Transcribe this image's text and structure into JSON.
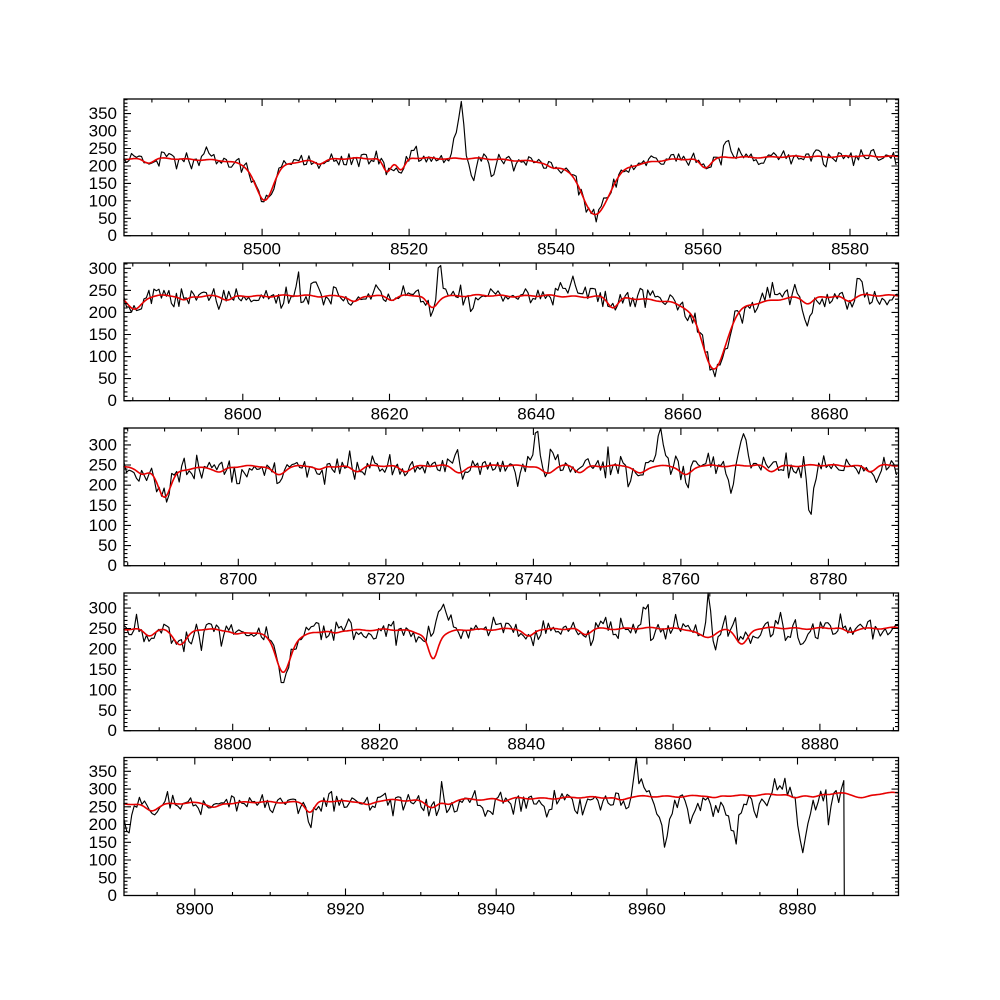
{
  "figure": {
    "background": "#ffffff",
    "description": "Five stacked panels of an observed stellar spectrum (black) in the Ca II triplet region with an overplotted model fit (red); x axis is wavelength in Angstroms, y axis is counts."
  },
  "chart_data": {
    "type": "line",
    "title": "",
    "xlabel": "",
    "ylabel": "",
    "grid": false,
    "legend": "none",
    "series": [
      {
        "name": "observed-spectrum",
        "color": "#000000"
      },
      {
        "name": "model-fit",
        "color": "#e60000"
      }
    ],
    "panels": [
      {
        "xlim": [
          8481.2,
          8586.6
        ],
        "ylim": [
          0,
          392
        ],
        "xticks": [
          8500,
          8520,
          8540,
          8560,
          8580
        ],
        "yticks": [
          0,
          50,
          100,
          150,
          200,
          250,
          300,
          350
        ],
        "x_minor_step": 5,
        "y_minor_step": 10,
        "continuum": [
          223,
          229
        ],
        "red_wiggle": 1.6,
        "noise_sigma": [
          12,
          12
        ],
        "model_lines": [
          {
            "x": 8484.5,
            "d": 12,
            "w": 0.7
          },
          {
            "x": 8500.3,
            "d": 122,
            "w": 1.1
          },
          {
            "x": 8507.8,
            "d": 10,
            "w": 0.6
          },
          {
            "x": 8517.0,
            "d": 38,
            "w": 0.55
          },
          {
            "x": 8518.9,
            "d": 34,
            "w": 0.55
          },
          {
            "x": 8539.5,
            "d": 12,
            "w": 0.7
          },
          {
            "x": 8545.4,
            "d": 167,
            "w": 1.7
          },
          {
            "x": 8560.3,
            "d": 26,
            "w": 0.7
          }
        ],
        "black_extras": [
          {
            "x": 8492.5,
            "a": 42,
            "w": 0.3
          },
          {
            "x": 8520.6,
            "a": 48,
            "w": 0.3
          },
          {
            "x": 8526.2,
            "a": 70,
            "w": 0.28
          },
          {
            "x": 8527.1,
            "a": 158,
            "w": 0.3
          },
          {
            "x": 8528.8,
            "a": -68,
            "w": 0.3
          },
          {
            "x": 8531.2,
            "a": -42,
            "w": 0.3
          },
          {
            "x": 8563.3,
            "a": 52,
            "w": 0.35
          },
          {
            "x": 8575.5,
            "a": 35,
            "w": 0.3
          }
        ]
      },
      {
        "xlim": [
          8583.8,
          8689.4
        ],
        "ylim": [
          0,
          312
        ],
        "xticks": [
          8600,
          8620,
          8640,
          8660,
          8680
        ],
        "yticks": [
          0,
          50,
          100,
          150,
          200,
          250,
          300
        ],
        "x_minor_step": 5,
        "y_minor_step": 10,
        "continuum": [
          237,
          241
        ],
        "red_wiggle": 1.6,
        "noise_sigma": [
          13,
          13
        ],
        "model_lines": [
          {
            "x": 8585.3,
            "d": 30,
            "w": 0.9
          },
          {
            "x": 8592.0,
            "d": 10,
            "w": 0.6
          },
          {
            "x": 8598.0,
            "d": 10,
            "w": 0.7
          },
          {
            "x": 8615.2,
            "d": 15,
            "w": 0.7
          },
          {
            "x": 8620.3,
            "d": 8,
            "w": 0.6
          },
          {
            "x": 8625.8,
            "d": 28,
            "w": 0.7
          },
          {
            "x": 8650.5,
            "d": 24,
            "w": 0.7
          },
          {
            "x": 8664.3,
            "d": 168,
            "w": 1.5
          },
          {
            "x": 8677.1,
            "d": 15,
            "w": 0.7
          },
          {
            "x": 8682.6,
            "d": 12,
            "w": 0.7
          }
        ],
        "black_extras": [
          {
            "x": 8607.3,
            "a": 28,
            "w": 0.3
          },
          {
            "x": 8626.8,
            "a": 72,
            "w": 0.35
          },
          {
            "x": 8645.0,
            "a": 35,
            "w": 0.3
          },
          {
            "x": 8655.5,
            "a": 30,
            "w": 0.3
          },
          {
            "x": 8672.0,
            "a": 40,
            "w": 0.35
          },
          {
            "x": 8677.0,
            "a": -58,
            "w": 0.4
          },
          {
            "x": 8684.0,
            "a": 42,
            "w": 0.35
          }
        ]
      },
      {
        "xlim": [
          8684.5,
          8789.5
        ],
        "ylim": [
          0,
          342
        ],
        "xticks": [
          8700,
          8720,
          8740,
          8760,
          8780
        ],
        "yticks": [
          0,
          50,
          100,
          150,
          200,
          250,
          300
        ],
        "x_minor_step": 5,
        "y_minor_step": 10,
        "continuum": [
          247,
          249
        ],
        "red_wiggle": 1.6,
        "noise_sigma": [
          14,
          14
        ],
        "model_lines": [
          {
            "x": 8687.0,
            "d": 10,
            "w": 0.6
          },
          {
            "x": 8690.0,
            "d": 75,
            "w": 0.8
          },
          {
            "x": 8697.5,
            "d": 12,
            "w": 0.7
          },
          {
            "x": 8705.4,
            "d": 20,
            "w": 0.8
          },
          {
            "x": 8711.0,
            "d": 10,
            "w": 0.6
          },
          {
            "x": 8716.1,
            "d": 12,
            "w": 0.7
          },
          {
            "x": 8722.6,
            "d": 12,
            "w": 0.7
          },
          {
            "x": 8730.0,
            "d": 16,
            "w": 0.8
          },
          {
            "x": 8741.9,
            "d": 18,
            "w": 0.8
          },
          {
            "x": 8746.3,
            "d": 16,
            "w": 0.7
          },
          {
            "x": 8754.4,
            "d": 20,
            "w": 0.8
          },
          {
            "x": 8760.7,
            "d": 24,
            "w": 0.8
          },
          {
            "x": 8772.2,
            "d": 14,
            "w": 0.7
          },
          {
            "x": 8785.7,
            "d": 14,
            "w": 0.7
          }
        ],
        "black_extras": [
          {
            "x": 8701.0,
            "a": -32,
            "w": 0.3
          },
          {
            "x": 8712.0,
            "a": -35,
            "w": 0.3
          },
          {
            "x": 8729.5,
            "a": 55,
            "w": 0.35
          },
          {
            "x": 8738.0,
            "a": -55,
            "w": 0.35
          },
          {
            "x": 8740.5,
            "a": 98,
            "w": 0.35
          },
          {
            "x": 8742.5,
            "a": 55,
            "w": 0.3
          },
          {
            "x": 8753.0,
            "a": -45,
            "w": 0.3
          },
          {
            "x": 8757.2,
            "a": 98,
            "w": 0.35
          },
          {
            "x": 8766.8,
            "a": -52,
            "w": 0.3
          },
          {
            "x": 8768.5,
            "a": 92,
            "w": 0.35
          },
          {
            "x": 8772.5,
            "a": 45,
            "w": 0.3
          },
          {
            "x": 8777.6,
            "a": -135,
            "w": 0.35
          }
        ]
      },
      {
        "xlim": [
          8785.2,
          8890.7
        ],
        "ylim": [
          0,
          337
        ],
        "xticks": [
          8800,
          8820,
          8840,
          8860,
          8880
        ],
        "yticks": [
          0,
          50,
          100,
          150,
          200,
          250,
          300
        ],
        "x_minor_step": 5,
        "y_minor_step": 10,
        "continuum": [
          249,
          251
        ],
        "red_wiggle": 1.6,
        "noise_sigma": [
          14,
          14
        ],
        "model_lines": [
          {
            "x": 8788.6,
            "d": 16,
            "w": 0.7
          },
          {
            "x": 8792.9,
            "d": 36,
            "w": 0.9
          },
          {
            "x": 8800.5,
            "d": 8,
            "w": 0.6
          },
          {
            "x": 8806.9,
            "d": 108,
            "w": 0.9
          },
          {
            "x": 8814.0,
            "d": 8,
            "w": 0.6
          },
          {
            "x": 8827.3,
            "d": 74,
            "w": 0.6
          },
          {
            "x": 8840.3,
            "d": 20,
            "w": 0.7
          },
          {
            "x": 8848.0,
            "d": 15,
            "w": 0.7
          },
          {
            "x": 8864.6,
            "d": 22,
            "w": 1.3
          },
          {
            "x": 8869.4,
            "d": 38,
            "w": 0.8
          },
          {
            "x": 8884.0,
            "d": 10,
            "w": 0.7
          }
        ],
        "black_extras": [
          {
            "x": 8795.7,
            "a": -30,
            "w": 0.3
          },
          {
            "x": 8827.3,
            "a": 74,
            "w": 0.6
          },
          {
            "x": 8828.8,
            "a": 62,
            "w": 0.7
          },
          {
            "x": 8841.0,
            "a": -28,
            "w": 0.3
          },
          {
            "x": 8856.3,
            "a": 35,
            "w": 0.35
          },
          {
            "x": 8864.9,
            "a": 150,
            "w": 0.18
          },
          {
            "x": 8865.8,
            "a": -48,
            "w": 0.3
          },
          {
            "x": 8871.0,
            "a": -22,
            "w": 0.4
          },
          {
            "x": 8877.6,
            "a": -45,
            "w": 0.3
          }
        ]
      },
      {
        "xlim": [
          8890.6,
          8993.4
        ],
        "ylim": [
          0,
          389
        ],
        "xticks": [
          8900,
          8920,
          8940,
          8960,
          8980
        ],
        "yticks": [
          0,
          50,
          100,
          150,
          200,
          250,
          300,
          350
        ],
        "x_minor_step": 5,
        "y_minor_step": 10,
        "continuum": [
          257,
          289
        ],
        "red_wiggle": 1.8,
        "noise_sigma": [
          12,
          22
        ],
        "black_end": 8986.2,
        "black_end_drop_to_zero": true,
        "model_lines": [
          {
            "x": 8894.2,
            "d": 18,
            "w": 0.8
          },
          {
            "x": 8902.6,
            "d": 12,
            "w": 0.7
          },
          {
            "x": 8915.3,
            "d": 30,
            "w": 0.6
          },
          {
            "x": 8923.0,
            "d": 12,
            "w": 0.7
          },
          {
            "x": 8931.5,
            "d": 20,
            "w": 0.8
          },
          {
            "x": 8933.6,
            "d": 14,
            "w": 0.7
          },
          {
            "x": 8941.0,
            "d": 6,
            "w": 0.6
          },
          {
            "x": 8956.5,
            "d": 8,
            "w": 0.6
          },
          {
            "x": 8969.0,
            "d": 8,
            "w": 0.6
          },
          {
            "x": 8979.6,
            "d": 10,
            "w": 0.6
          },
          {
            "x": 8982.2,
            "d": 8,
            "w": 0.6
          },
          {
            "x": 8988.6,
            "d": 12,
            "w": 0.9
          }
        ],
        "black_extras": [
          {
            "x": 8891.0,
            "a": -88,
            "w": 0.35
          },
          {
            "x": 8938.8,
            "a": -38,
            "w": 0.5
          },
          {
            "x": 8943.0,
            "a": -20,
            "w": 1.5
          },
          {
            "x": 8947.0,
            "a": -42,
            "w": 0.5
          },
          {
            "x": 8951.4,
            "a": -48,
            "w": 0.5
          },
          {
            "x": 8955.0,
            "a": -15,
            "w": 1.5
          },
          {
            "x": 8958.7,
            "a": 102,
            "w": 0.45
          },
          {
            "x": 8962.5,
            "a": -112,
            "w": 0.7
          },
          {
            "x": 8966.0,
            "a": -48,
            "w": 0.5
          },
          {
            "x": 8968.0,
            "a": -20,
            "w": 1.5
          },
          {
            "x": 8971.5,
            "a": -132,
            "w": 0.7
          },
          {
            "x": 8974.8,
            "a": -55,
            "w": 0.5
          },
          {
            "x": 8977.5,
            "a": 25,
            "w": 0.4
          },
          {
            "x": 8980.8,
            "a": -138,
            "w": 0.6
          },
          {
            "x": 8984.3,
            "a": -35,
            "w": 0.5
          }
        ]
      }
    ]
  }
}
